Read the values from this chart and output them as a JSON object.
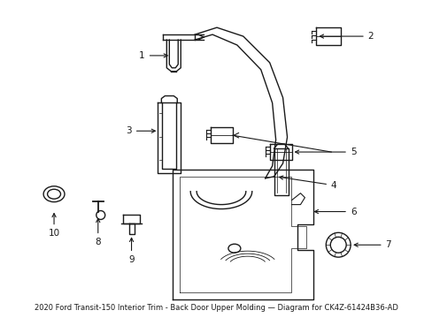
{
  "title": "2020 Ford Transit-150 Interior Trim - Back Door Upper Molding\nDiagram for CK4Z-61424B36-AD",
  "background_color": "#ffffff",
  "line_color": "#1a1a1a",
  "label_color": "#000000",
  "figsize": [
    4.89,
    3.6
  ],
  "dpi": 100
}
